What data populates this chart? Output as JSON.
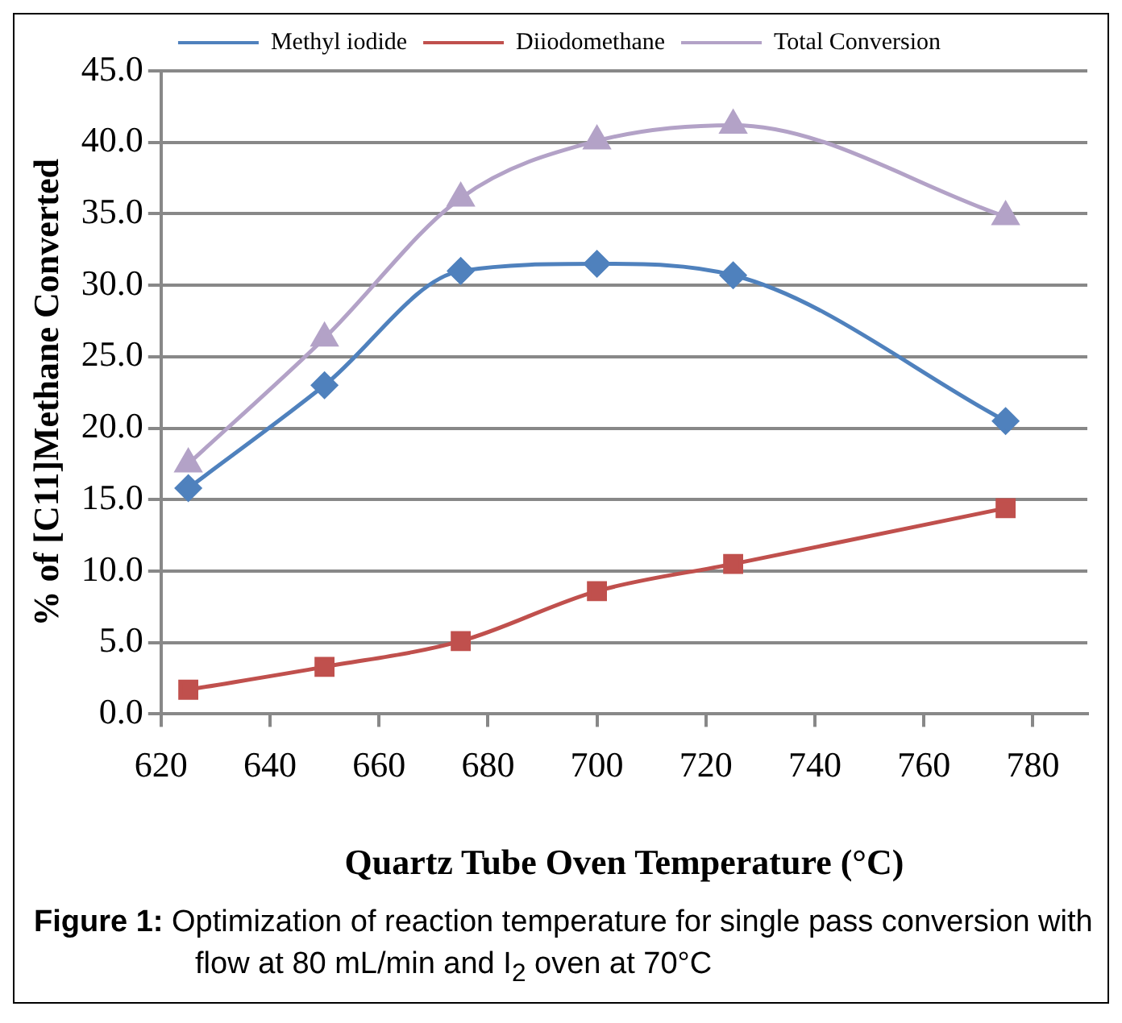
{
  "chart_data": {
    "type": "line",
    "xlabel": "Quartz Tube Oven Temperature (°C)",
    "ylabel": "% of [C11]Methane Converted",
    "x": [
      625,
      650,
      675,
      700,
      725,
      775
    ],
    "series": [
      {
        "name": "Methyl iodide",
        "color": "#4f81bd",
        "marker": "diamond",
        "values": [
          15.8,
          23.0,
          31.0,
          31.5,
          30.7,
          20.5
        ]
      },
      {
        "name": "Diiodomethane",
        "color": "#c0504d",
        "marker": "square",
        "values": [
          1.7,
          3.3,
          5.1,
          8.6,
          10.5,
          14.4
        ]
      },
      {
        "name": "Total Conversion",
        "color": "#b3a2c7",
        "marker": "triangle",
        "values": [
          17.5,
          26.3,
          36.1,
          40.1,
          41.2,
          34.8
        ]
      }
    ],
    "xlim": [
      620,
      790
    ],
    "xticks": [
      620,
      640,
      660,
      680,
      700,
      720,
      740,
      760,
      780
    ],
    "ylim": [
      0,
      45
    ],
    "yticks": [
      {
        "value": 0,
        "label": "0.0"
      },
      {
        "value": 5,
        "label": "5.0"
      },
      {
        "value": 10,
        "label": "10.0"
      },
      {
        "value": 15,
        "label": "15.0"
      },
      {
        "value": 20,
        "label": "20.0"
      },
      {
        "value": 25,
        "label": "25.0"
      },
      {
        "value": 30,
        "label": "30.0"
      },
      {
        "value": 35,
        "label": "35.0"
      },
      {
        "value": 40,
        "label": "40.0"
      },
      {
        "value": 45,
        "label": "45.0"
      }
    ],
    "grid": "y",
    "legend": "top",
    "annotations": [
      "Figure 1:",
      "Optimization of reaction temperature for single pass conversion with flow at 80 mL/min and I$_{2}$ oven at 70°C"
    ]
  }
}
